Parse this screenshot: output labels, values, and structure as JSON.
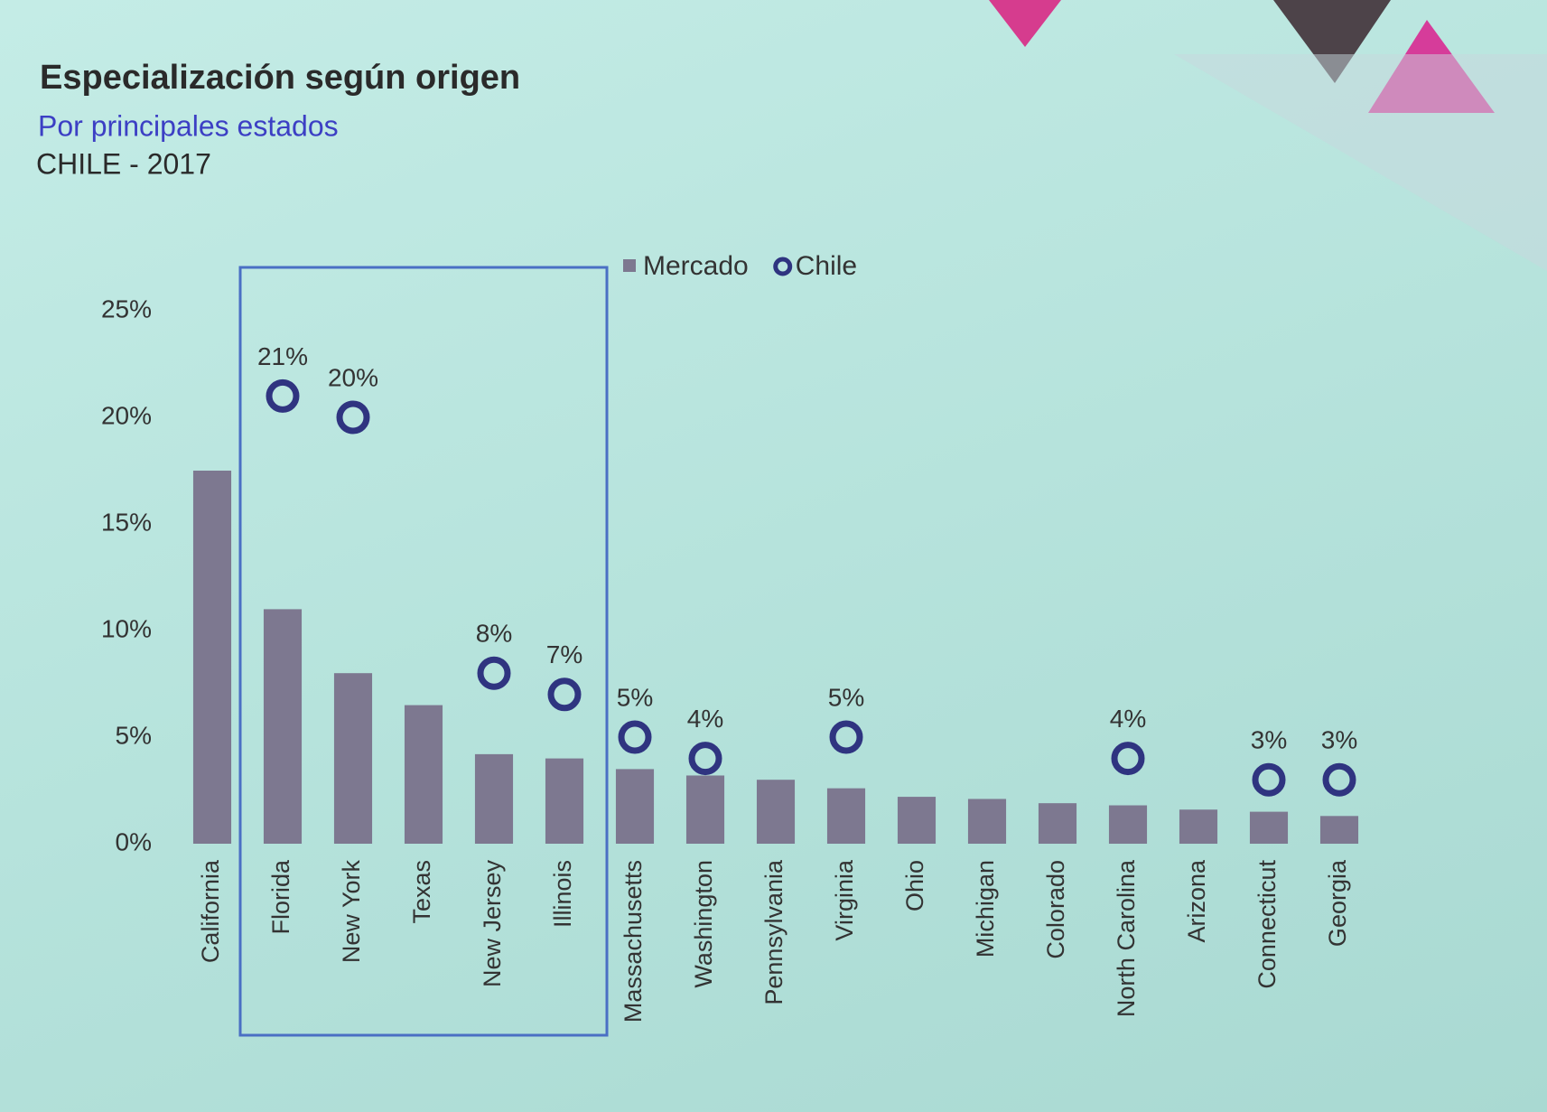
{
  "chart_data": {
    "type": "bar",
    "title": "Especialización según origen",
    "subtitle": "Por principales estados",
    "subtitle2": "CHILE - 2017",
    "categories": [
      "California",
      "Florida",
      "New York",
      "Texas",
      "New Jersey",
      "Illinois",
      "Massachusetts",
      "Washington",
      "Pennsylvania",
      "Virginia",
      "Ohio",
      "Michigan",
      "Colorado",
      "North Carolina",
      "Arizona",
      "Connecticut",
      "Georgia"
    ],
    "series": [
      {
        "name": "Mercado",
        "type": "bar",
        "color": "#7d7890",
        "values": [
          17.5,
          11,
          8,
          6.5,
          4.2,
          4,
          3.5,
          3.2,
          3,
          2.6,
          2.2,
          2.1,
          1.9,
          1.8,
          1.6,
          1.5,
          1.3
        ]
      },
      {
        "name": "Chile",
        "type": "scatter",
        "color": "#2f3480",
        "values": [
          null,
          21,
          20,
          null,
          8,
          7,
          5,
          4,
          null,
          5,
          null,
          null,
          null,
          4,
          null,
          3,
          3
        ],
        "value_labels": [
          null,
          "21%",
          "20%",
          null,
          "8%",
          "7%",
          "5%",
          "4%",
          null,
          "5%",
          null,
          null,
          null,
          "4%",
          null,
          "3%",
          "3%"
        ]
      }
    ],
    "ylim": [
      0,
      25
    ],
    "yticks": [
      {
        "value": 0,
        "label": "0%"
      },
      {
        "value": 5,
        "label": "5%"
      },
      {
        "value": 10,
        "label": "10%"
      },
      {
        "value": 15,
        "label": "15%"
      },
      {
        "value": 20,
        "label": "20%"
      },
      {
        "value": 25,
        "label": "25%"
      }
    ],
    "grid": false
  }
}
